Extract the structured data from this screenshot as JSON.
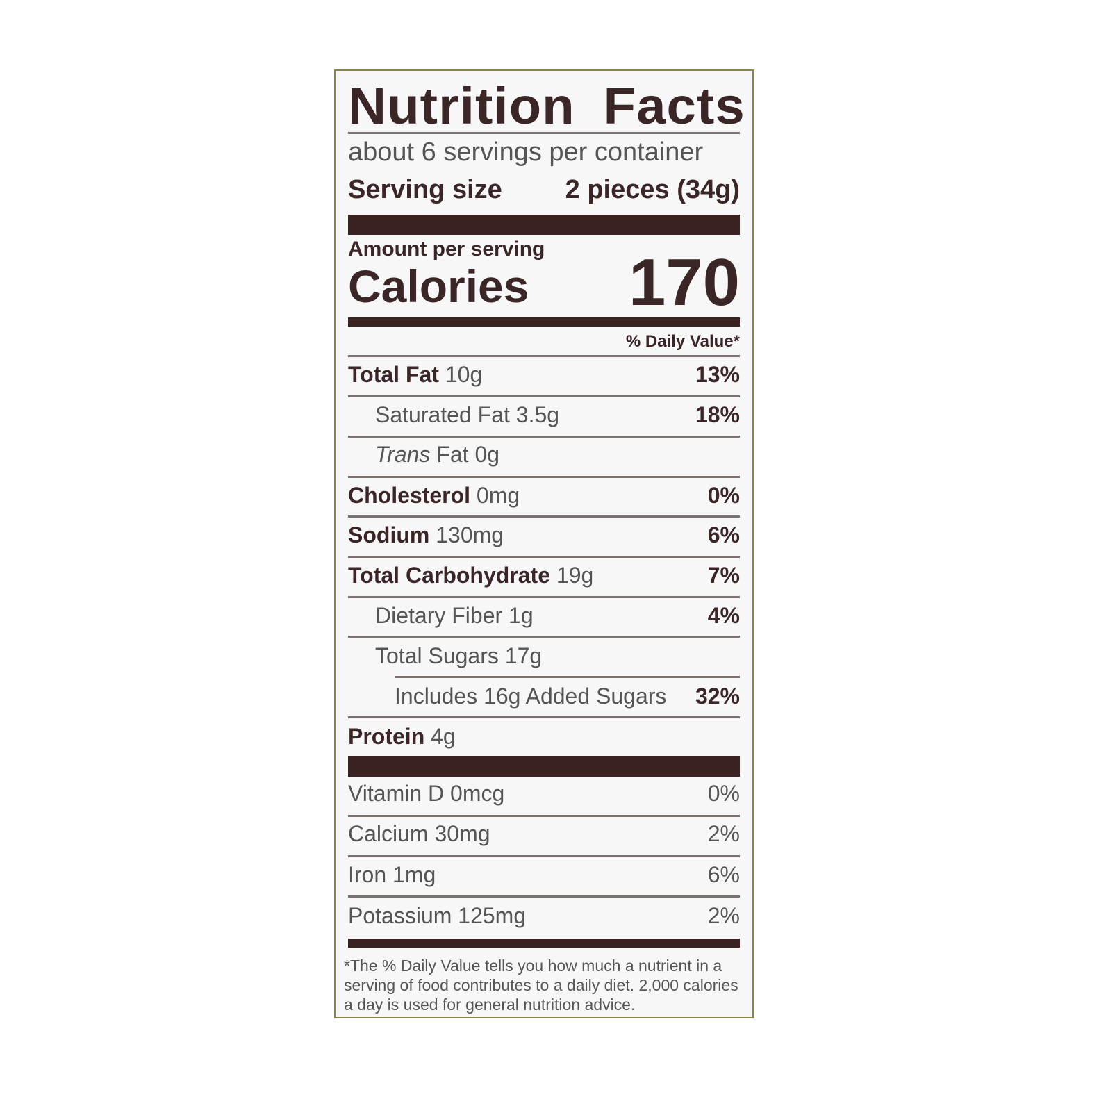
{
  "title": "Nutrition Facts",
  "servings_per_container": "about 6 servings per container",
  "serving_size": {
    "label": "Serving size",
    "value": "2 pieces (34g)"
  },
  "amount_per_serving": "Amount per serving",
  "calories": {
    "label": "Calories",
    "value": "170"
  },
  "daily_value_header": "% Daily Value*",
  "nutrients": [
    {
      "name": "Total Fat",
      "amount": "10g",
      "dv": "13%"
    },
    {
      "name": "Saturated Fat",
      "amount": "3.5g",
      "dv": "18%"
    },
    {
      "name": "Trans",
      "name_rest": "Fat",
      "amount": "0g",
      "dv": ""
    },
    {
      "name": "Cholesterol",
      "amount": "0mg",
      "dv": "0%"
    },
    {
      "name": "Sodium",
      "amount": "130mg",
      "dv": "6%"
    },
    {
      "name": "Total Carbohydrate",
      "amount": "19g",
      "dv": "7%"
    },
    {
      "name": "Dietary Fiber",
      "amount": "1g",
      "dv": "4%"
    },
    {
      "name": "Total Sugars",
      "amount": "17g",
      "dv": ""
    },
    {
      "name": "Includes 16g Added Sugars",
      "amount": "",
      "dv": "32%"
    },
    {
      "name": "Protein",
      "amount": "4g",
      "dv": ""
    }
  ],
  "vitamins": [
    {
      "name": "Vitamin D",
      "amount": "0mcg",
      "dv": "0%"
    },
    {
      "name": "Calcium",
      "amount": "30mg",
      "dv": "2%"
    },
    {
      "name": "Iron",
      "amount": "1mg",
      "dv": "6%"
    },
    {
      "name": "Potassium",
      "amount": "125mg",
      "dv": "2%"
    }
  ],
  "footnote": "*The % Daily Value tells you how much a nutrient in a serving of food contributes to a daily diet. 2,000 calories a day is used for general nutrition advice.",
  "colors": {
    "text": "#3a2626",
    "bars": "#3a2222",
    "border": "#8a8250"
  }
}
